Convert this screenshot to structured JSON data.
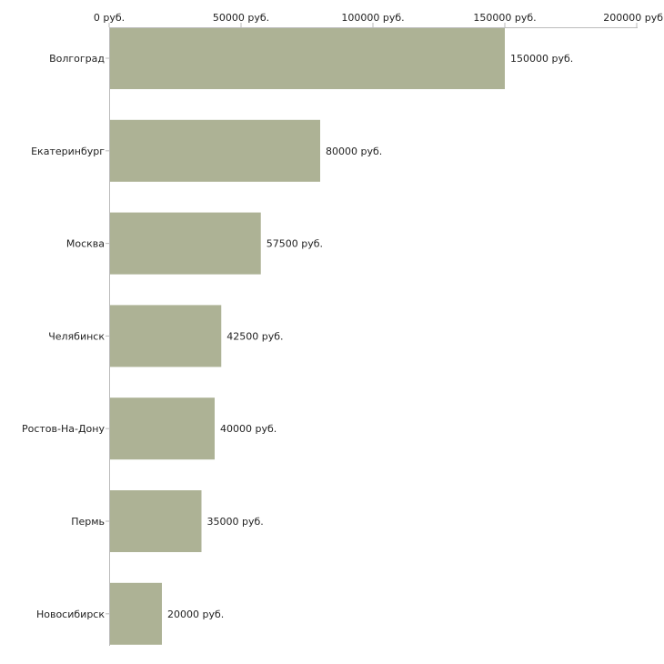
{
  "chart_data": {
    "type": "bar",
    "orientation": "horizontal",
    "title": "",
    "xlabel": "",
    "ylabel": "",
    "categories": [
      "Волгоград",
      "Екатеринбург",
      "Москва",
      "Челябинск",
      "Ростов-На-Дону",
      "Пермь",
      "Новосибирск"
    ],
    "values": [
      150000,
      80000,
      57500,
      42500,
      40000,
      35000,
      20000
    ],
    "value_labels": [
      "150000 руб.",
      "80000 руб.",
      "57500 руб.",
      "42500 руб.",
      "40000 руб.",
      "35000 руб.",
      "20000 руб."
    ],
    "xlim": [
      0,
      200000
    ],
    "ticks": [
      0,
      50000,
      100000,
      150000,
      200000
    ],
    "tick_labels": [
      "0 руб.",
      "50000 руб.",
      "100000 руб.",
      "150000 руб.",
      "200000 руб"
    ],
    "axis_position": "top",
    "grid": false,
    "legend": "none",
    "bar_color": "#adb295",
    "axis_color": "#bbbbbb",
    "text_color": "#222222"
  }
}
